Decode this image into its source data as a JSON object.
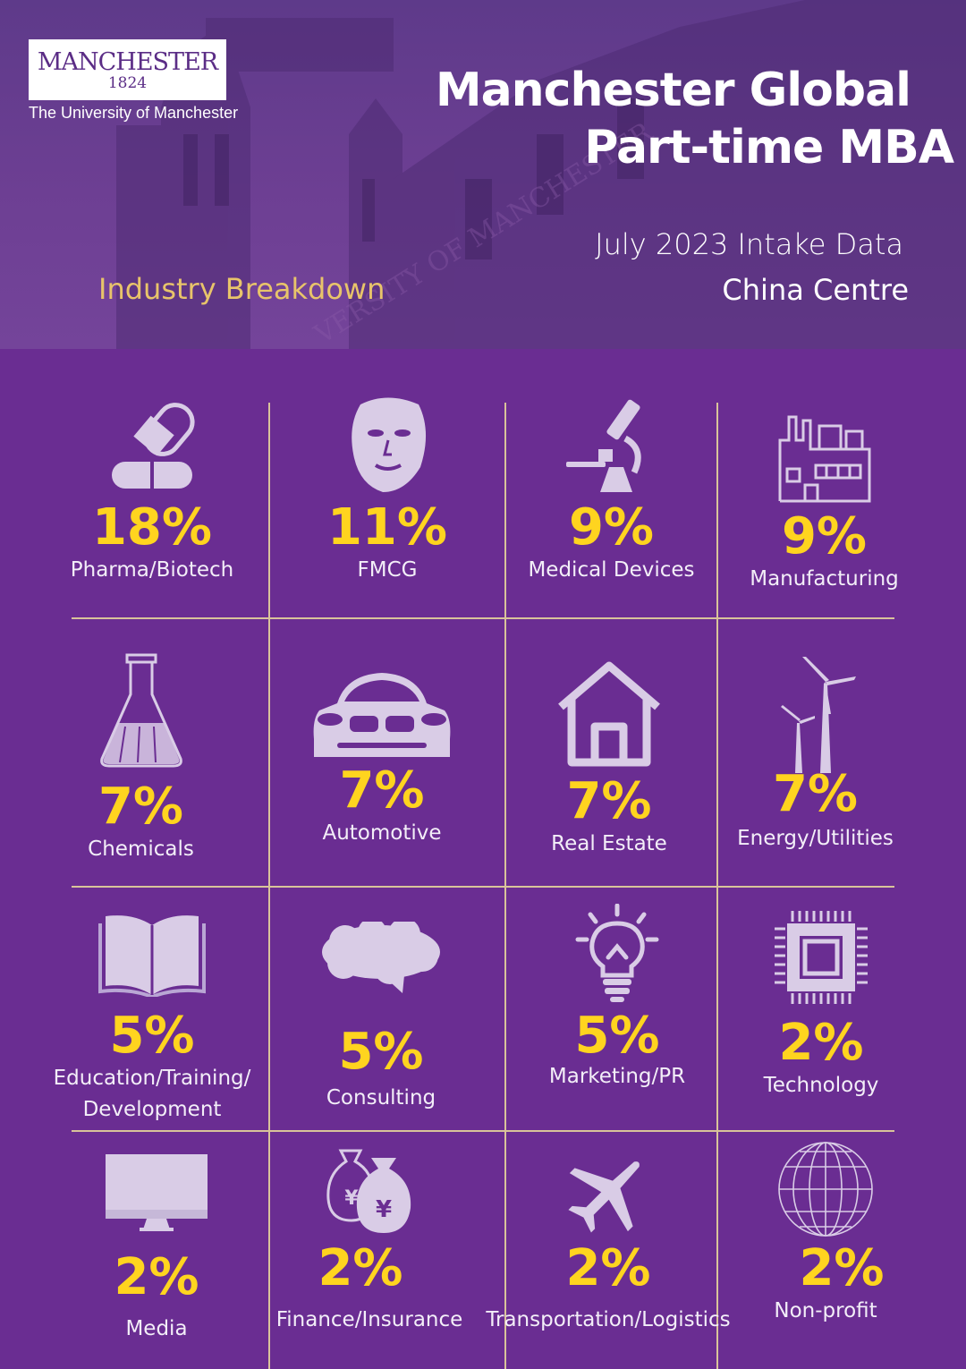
{
  "header": {
    "logo_word": "MANCHESTER",
    "logo_year": "1824",
    "logo_sub": "The University of Manchester",
    "title_line1": "Manchester Global",
    "title_line2": "Part-time MBA",
    "intake": "July 2023 Intake Data",
    "centre": "China Centre",
    "section": "Industry Breakdown"
  },
  "colors": {
    "background": "#6a2d92",
    "percent": "#ffd41f",
    "divider": "#d9c39a",
    "icon": "#d9cce6",
    "section_heading": "#e8c46a"
  },
  "industries": [
    {
      "percent": "18%",
      "label": "Pharma/Biotech",
      "icon": "pill-icon"
    },
    {
      "percent": "11%",
      "label": "FMCG",
      "icon": "face-mask-icon"
    },
    {
      "percent": "9%",
      "label": "Medical Devices",
      "icon": "microscope-icon"
    },
    {
      "percent": "9%",
      "label": "Manufacturing",
      "icon": "factory-icon"
    },
    {
      "percent": "7%",
      "label": "Chemicals",
      "icon": "flask-icon"
    },
    {
      "percent": "7%",
      "label": "Automotive",
      "icon": "car-icon"
    },
    {
      "percent": "7%",
      "label": "Real Estate",
      "icon": "house-icon"
    },
    {
      "percent": "7%",
      "label": "Energy/Utilities",
      "icon": "wind-turbine-icon"
    },
    {
      "percent": "5%",
      "label": "Education/Training/",
      "label2": "Development",
      "icon": "book-icon"
    },
    {
      "percent": "5%",
      "label": "Consulting",
      "icon": "speech-cloud-icon"
    },
    {
      "percent": "5%",
      "label": "Marketing/PR",
      "icon": "lightbulb-icon"
    },
    {
      "percent": "2%",
      "label": "Technology",
      "icon": "chip-icon"
    },
    {
      "percent": "2%",
      "label": "Media",
      "icon": "monitor-icon"
    },
    {
      "percent": "2%",
      "label": "Finance/Insurance",
      "icon": "money-bag-icon"
    },
    {
      "percent": "2%",
      "label": "Transportation/Logistics",
      "icon": "airplane-icon"
    },
    {
      "percent": "2%",
      "label": "Non-profit",
      "icon": "globe-icon"
    }
  ]
}
